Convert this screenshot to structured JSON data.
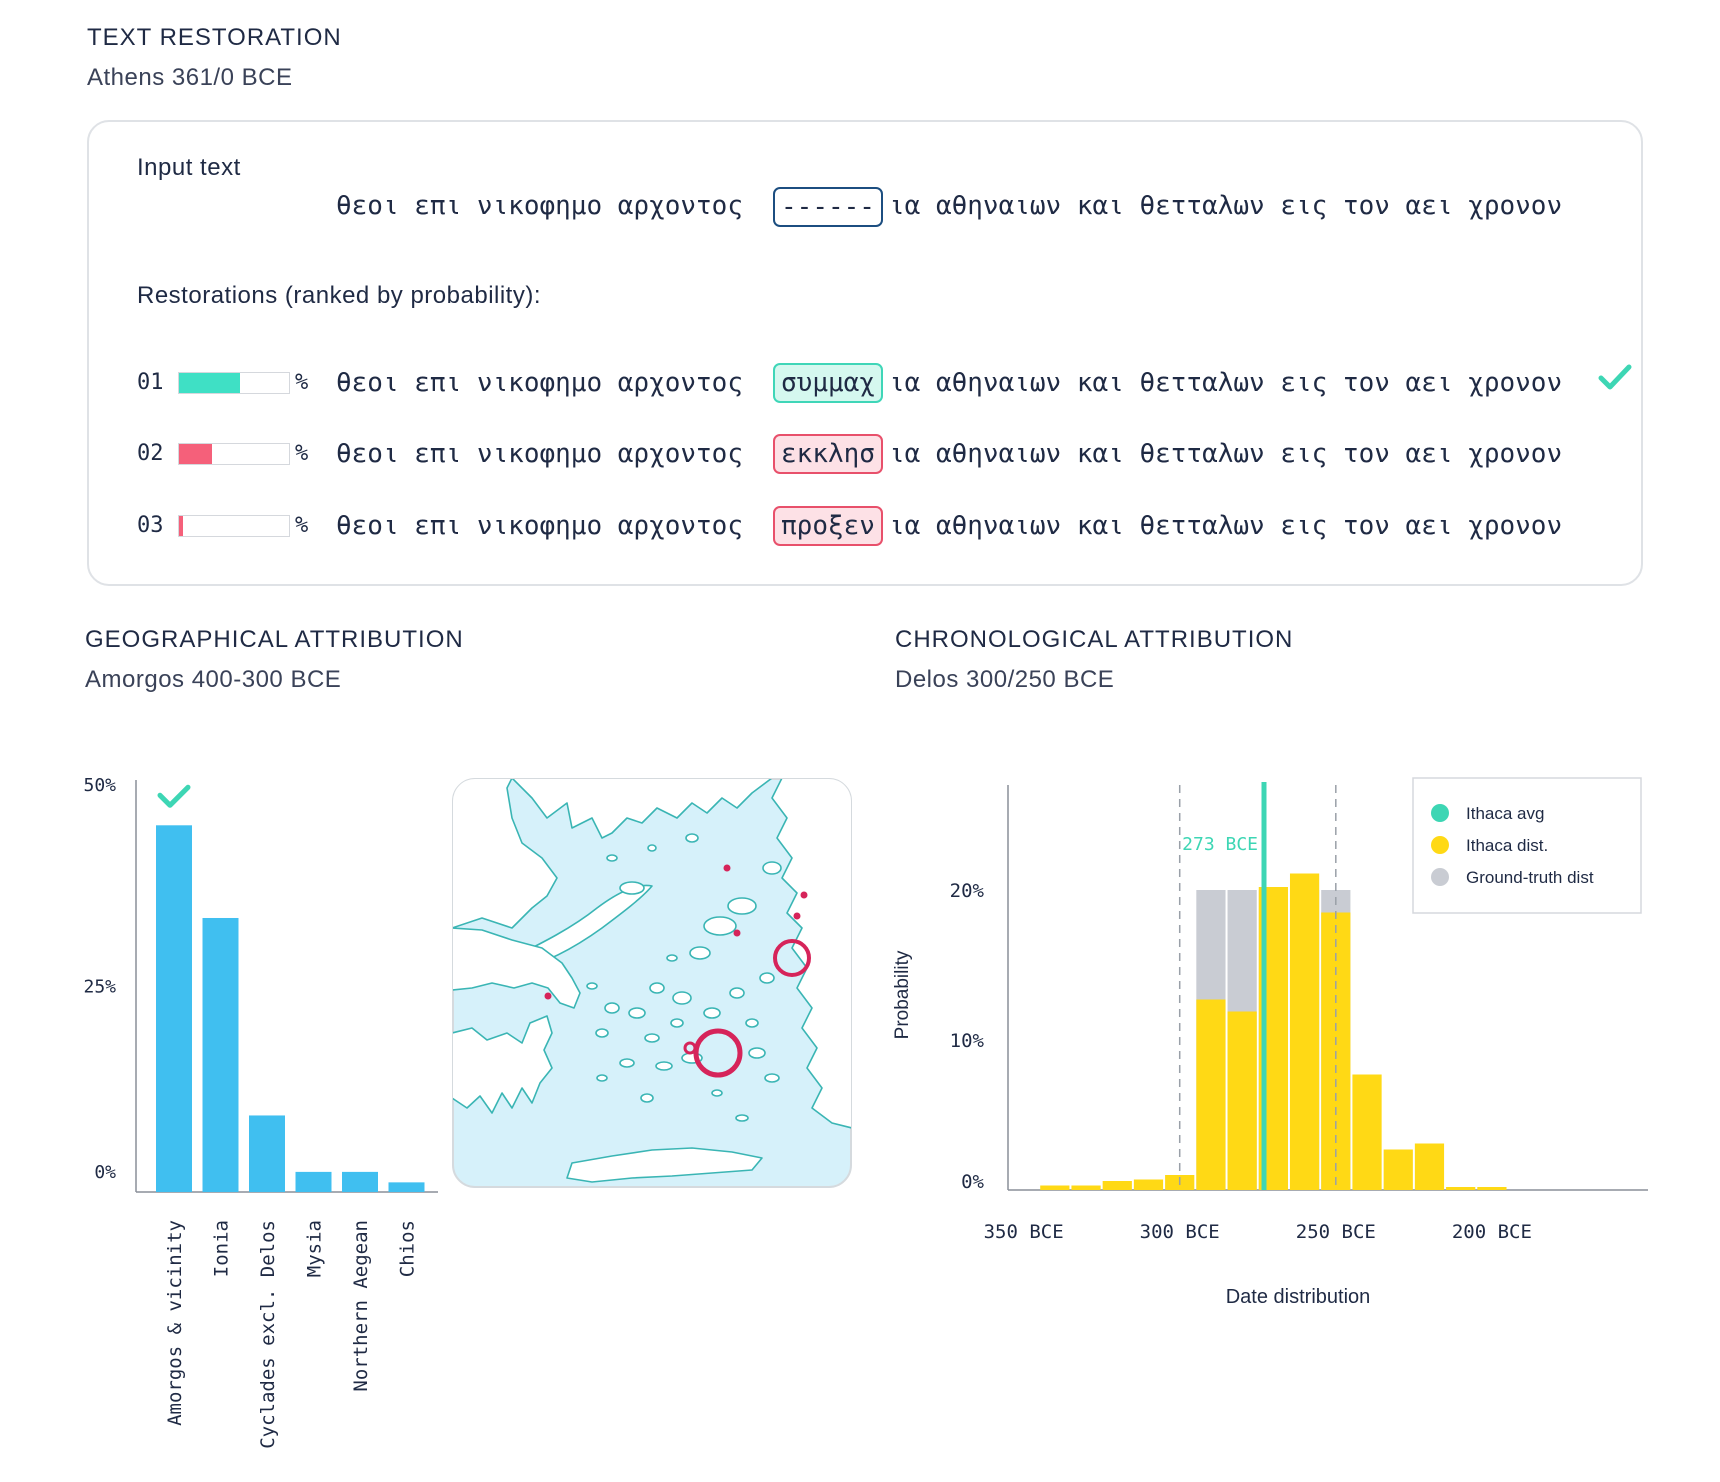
{
  "text_restoration": {
    "title": "TEXT RESTORATION",
    "subtitle": "Athens 361/0 BCE",
    "input_label": "Input text",
    "prefix": "θεοι επι νικοφημο αρχοντος",
    "masked": "------",
    "suffix": "ια αθηναιων και θετταλων εις τον αει χρονον",
    "restorations_label": "Restorations (ranked by probability):",
    "percent_sign": "%",
    "restorations": [
      {
        "rank": "01",
        "word": "συμμαχ",
        "prob": 0.55,
        "fill": "#3fe0c5",
        "slot_bg": "#d5f8ef",
        "slot_border": "#3fd6b8",
        "correct": true
      },
      {
        "rank": "02",
        "word": "εκκλησ",
        "prob": 0.3,
        "fill": "#f5607a",
        "slot_bg": "#fde1e6",
        "slot_border": "#e8506b",
        "correct": false
      },
      {
        "rank": "03",
        "word": "προξεν",
        "prob": 0.04,
        "fill": "#f5607a",
        "slot_bg": "#fde1e6",
        "slot_border": "#e8506b",
        "correct": false
      }
    ]
  },
  "geo": {
    "title": "GEOGRAPHICAL ATTRIBUTION",
    "subtitle": "Amorgos 400-300 BCE"
  },
  "chrono": {
    "title": "CHRONOLOGICAL ATTRIBUTION",
    "subtitle": "Delos 300/250 BCE"
  },
  "colors": {
    "geo_bar": "#40bff0",
    "teal": "#3dd6b4",
    "yellow": "#ffd915",
    "gray": "#c9ccd3",
    "map_sea": "#d6f1fa",
    "map_line": "#3ab5b4",
    "marker": "#d6245a"
  },
  "chart_data": [
    {
      "type": "bar",
      "categories": [
        "Amorgos & vicinity",
        "Ionia",
        "Cyclades excl. Delos",
        "Mysia",
        "Northern Aegean",
        "Chios"
      ],
      "values": [
        45,
        33.5,
        9,
        2,
        2,
        0.7
      ],
      "correct_index": 0,
      "ylim": [
        0,
        50
      ],
      "yticks": [
        {
          "v": 50,
          "label": "50%"
        },
        {
          "v": 25,
          "label": "25%"
        },
        {
          "v": 0,
          "label": "0%"
        }
      ]
    },
    {
      "type": "bar",
      "ylabel": "Probability",
      "xlabel": "Date distribution",
      "xlim": [
        -355,
        -150
      ],
      "ylim": [
        0,
        27
      ],
      "yticks": [
        {
          "v": 20,
          "label": "20%"
        },
        {
          "v": 10,
          "label": "10%"
        },
        {
          "v": 0,
          "label": "0%"
        }
      ],
      "xticks": [
        {
          "v": -350,
          "label": "350 BCE"
        },
        {
          "v": -300,
          "label": "300 BCE"
        },
        {
          "v": -250,
          "label": "250 BCE"
        },
        {
          "v": -200,
          "label": "200 BCE"
        }
      ],
      "bin_starts": [
        -345,
        -335,
        -325,
        -315,
        -305,
        -295,
        -285,
        -275,
        -265,
        -255,
        -245,
        -235,
        -225,
        -215,
        -205,
        -195,
        -185
      ],
      "bin_width": 10,
      "ithaca_dist": [
        0.3,
        0.3,
        0.6,
        0.7,
        1.0,
        12.7,
        11.9,
        20.2,
        21.1,
        18.5,
        7.7,
        2.7,
        3.1,
        0.2,
        0.2,
        0,
        0
      ],
      "ground_truth": [
        0,
        0,
        0,
        0,
        0,
        20,
        20,
        20,
        20,
        20,
        0,
        0,
        0,
        0,
        0,
        0,
        0
      ],
      "ground_truth_range": [
        -300,
        -250
      ],
      "ithaca_avg": -273,
      "avg_label": "273 BCE",
      "legend": [
        {
          "label": "Ithaca avg",
          "color": "#3dd6b4"
        },
        {
          "label": "Ithaca dist.",
          "color": "#ffd915"
        },
        {
          "label": "Ground-truth dist",
          "color": "#c9ccd3"
        }
      ],
      "legend_position": "top-right"
    }
  ]
}
